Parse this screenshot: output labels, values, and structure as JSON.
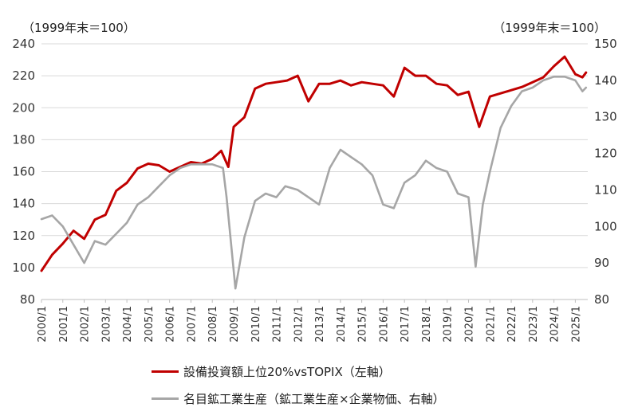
{
  "chart_data": {
    "type": "line",
    "left_axis_unit": "（1999年末＝100）",
    "right_axis_unit": "（1999年末＝100）",
    "x_ticks": [
      "2000/1",
      "2001/1",
      "2002/1",
      "2003/1",
      "2004/1",
      "2005/1",
      "2006/1",
      "2007/1",
      "2008/1",
      "2009/1",
      "2010/1",
      "2011/1",
      "2012/1",
      "2013/1",
      "2014/1",
      "2015/1",
      "2016/1",
      "2017/1",
      "2018/1",
      "2019/1",
      "2020/1",
      "2021/1",
      "2022/1",
      "2023/1",
      "2024/1",
      "2025/1"
    ],
    "y_left": {
      "ylim": [
        80,
        240
      ],
      "ticks": [
        "80",
        "100",
        "120",
        "140",
        "160",
        "180",
        "200",
        "220",
        "240"
      ]
    },
    "y_right": {
      "ylim": [
        80,
        150
      ],
      "ticks": [
        "80",
        "90",
        "100",
        "110",
        "120",
        "130",
        "140",
        "150"
      ]
    },
    "series": [
      {
        "name": "設備投資額上位20%vsTOPIX（左軸）",
        "axis": "left",
        "color": "#c00000",
        "points": [
          [
            "2000/1",
            98
          ],
          [
            "2000/7",
            108
          ],
          [
            "2001/1",
            115
          ],
          [
            "2001/7",
            123
          ],
          [
            "2002/1",
            118
          ],
          [
            "2002/7",
            130
          ],
          [
            "2003/1",
            133
          ],
          [
            "2003/7",
            148
          ],
          [
            "2004/1",
            153
          ],
          [
            "2004/7",
            162
          ],
          [
            "2005/1",
            165
          ],
          [
            "2005/7",
            164
          ],
          [
            "2006/1",
            160
          ],
          [
            "2006/7",
            163
          ],
          [
            "2007/1",
            166
          ],
          [
            "2007/7",
            165
          ],
          [
            "2008/1",
            168
          ],
          [
            "2008/6",
            173
          ],
          [
            "2008/10",
            163
          ],
          [
            "2009/1",
            188
          ],
          [
            "2009/7",
            194
          ],
          [
            "2010/1",
            212
          ],
          [
            "2010/7",
            215
          ],
          [
            "2011/1",
            216
          ],
          [
            "2011/7",
            217
          ],
          [
            "2012/1",
            220
          ],
          [
            "2012/7",
            204
          ],
          [
            "2013/1",
            215
          ],
          [
            "2013/7",
            215
          ],
          [
            "2014/1",
            217
          ],
          [
            "2014/7",
            214
          ],
          [
            "2015/1",
            216
          ],
          [
            "2015/7",
            215
          ],
          [
            "2016/1",
            214
          ],
          [
            "2016/7",
            207
          ],
          [
            "2017/1",
            225
          ],
          [
            "2017/7",
            220
          ],
          [
            "2018/1",
            220
          ],
          [
            "2018/7",
            215
          ],
          [
            "2019/1",
            214
          ],
          [
            "2019/7",
            208
          ],
          [
            "2020/1",
            210
          ],
          [
            "2020/7",
            188
          ],
          [
            "2021/1",
            207
          ],
          [
            "2021/7",
            209
          ],
          [
            "2022/1",
            211
          ],
          [
            "2022/7",
            213
          ],
          [
            "2023/1",
            216
          ],
          [
            "2023/7",
            219
          ],
          [
            "2024/1",
            226
          ],
          [
            "2024/7",
            232
          ],
          [
            "2025/1",
            221
          ],
          [
            "2025/5",
            219
          ],
          [
            "2025/7",
            222
          ]
        ]
      },
      {
        "name": "名目鉱工業生産（鉱工業生産×企業物価、右軸）",
        "axis": "right",
        "color": "#a6a6a6",
        "points": [
          [
            "2000/1",
            102
          ],
          [
            "2000/7",
            103
          ],
          [
            "2001/1",
            100
          ],
          [
            "2001/7",
            95
          ],
          [
            "2002/1",
            90
          ],
          [
            "2002/7",
            96
          ],
          [
            "2003/1",
            95
          ],
          [
            "2003/7",
            98
          ],
          [
            "2004/1",
            101
          ],
          [
            "2004/7",
            106
          ],
          [
            "2005/1",
            108
          ],
          [
            "2005/7",
            111
          ],
          [
            "2006/1",
            114
          ],
          [
            "2006/7",
            116
          ],
          [
            "2007/1",
            117
          ],
          [
            "2007/7",
            117
          ],
          [
            "2008/1",
            117
          ],
          [
            "2008/7",
            116
          ],
          [
            "2008/9",
            108
          ],
          [
            "2009/2",
            83
          ],
          [
            "2009/7",
            97
          ],
          [
            "2010/1",
            107
          ],
          [
            "2010/7",
            109
          ],
          [
            "2011/1",
            108
          ],
          [
            "2011/6",
            111
          ],
          [
            "2012/1",
            110
          ],
          [
            "2012/7",
            108
          ],
          [
            "2013/1",
            106
          ],
          [
            "2013/7",
            116
          ],
          [
            "2014/1",
            121
          ],
          [
            "2014/7",
            119
          ],
          [
            "2015/1",
            117
          ],
          [
            "2015/7",
            114
          ],
          [
            "2016/1",
            106
          ],
          [
            "2016/7",
            105
          ],
          [
            "2017/1",
            112
          ],
          [
            "2017/7",
            114
          ],
          [
            "2018/1",
            118
          ],
          [
            "2018/7",
            116
          ],
          [
            "2019/1",
            115
          ],
          [
            "2019/7",
            109
          ],
          [
            "2020/1",
            108
          ],
          [
            "2020/5",
            89
          ],
          [
            "2020/9",
            106
          ],
          [
            "2021/1",
            115
          ],
          [
            "2021/7",
            127
          ],
          [
            "2022/1",
            133
          ],
          [
            "2022/7",
            137
          ],
          [
            "2023/1",
            138
          ],
          [
            "2023/7",
            140
          ],
          [
            "2024/1",
            141
          ],
          [
            "2024/7",
            141
          ],
          [
            "2025/1",
            140
          ],
          [
            "2025/5",
            137
          ],
          [
            "2025/7",
            138
          ]
        ]
      }
    ],
    "legend_placement": "bottom",
    "grid": "horizontal"
  }
}
